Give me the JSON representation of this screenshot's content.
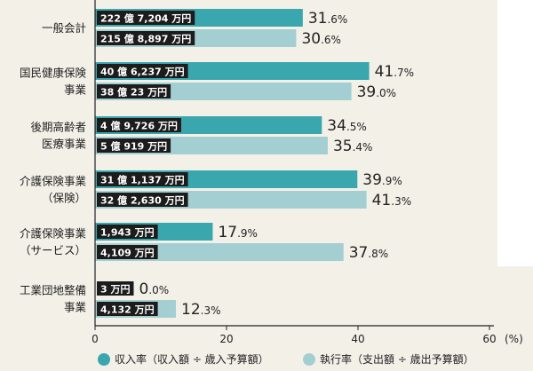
{
  "chart_data": {
    "type": "bar",
    "orientation": "horizontal",
    "categories": [
      [
        "一般会計"
      ],
      [
        "国民健康保険",
        "事業"
      ],
      [
        "後期高齢者",
        "医療事業"
      ],
      [
        "介護保険事業",
        "（保険）"
      ],
      [
        "介護保険事業",
        "（サービス）"
      ],
      [
        "工業団地整備",
        "事業"
      ]
    ],
    "series": [
      {
        "name": "収入率（収入額 ÷ 歳入予算額）",
        "color": "#3aa6ae",
        "values": [
          31.6,
          41.7,
          34.5,
          39.9,
          17.9,
          0.0
        ],
        "value_labels": [
          [
            "31",
            ".6%"
          ],
          [
            "41",
            ".7%"
          ],
          [
            "34",
            ".5%"
          ],
          [
            "39",
            ".9%"
          ],
          [
            "17",
            ".9%"
          ],
          [
            "0",
            ".0%"
          ]
        ],
        "amounts": [
          "222 億 7,204 万円",
          "40 億 6,237 万円",
          "4 億 9,726 万円",
          "31 億 1,137 万円",
          "1,943 万円",
          "3 万円"
        ]
      },
      {
        "name": "執行率（支出額 ÷ 歳出予算額）",
        "color": "#a4cfd2",
        "values": [
          30.6,
          39.0,
          35.4,
          41.3,
          37.8,
          12.3
        ],
        "value_labels": [
          [
            "30",
            ".6%"
          ],
          [
            "39",
            ".0%"
          ],
          [
            "35",
            ".4%"
          ],
          [
            "41",
            ".3%"
          ],
          [
            "37",
            ".8%"
          ],
          [
            "12",
            ".3%"
          ]
        ],
        "amounts": [
          "215 億 8,897 万円",
          "38 億 23 万円",
          "5 億 919 万円",
          "32 億 2,630 万円",
          "4,109 万円",
          "4,132 万円"
        ]
      }
    ],
    "xlim": [
      0,
      60
    ],
    "xticks": [
      0,
      20,
      40,
      60
    ],
    "x_unit": "(%)",
    "legend_position": "bottom",
    "grid": false
  }
}
